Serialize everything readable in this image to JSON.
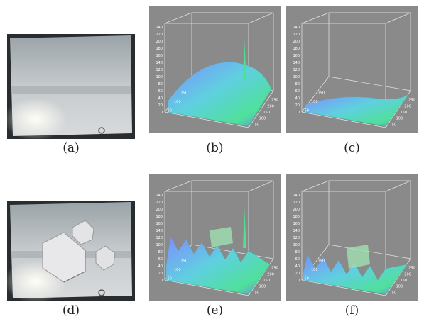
{
  "panels": [
    {
      "caption": "(a)",
      "kind": "photo",
      "cubes": false
    },
    {
      "caption": "(b)",
      "kind": "plot",
      "rugged": false,
      "z_ticks": [
        0,
        20,
        40,
        60,
        80,
        100,
        120,
        140,
        160,
        180,
        200,
        220,
        240
      ],
      "x_ticks": [
        50,
        100,
        150
      ],
      "y_ticks": [
        50,
        100,
        150,
        200,
        250
      ]
    },
    {
      "caption": "(c)",
      "kind": "plot",
      "rugged": false,
      "flat": true,
      "z_ticks": [
        0,
        20,
        40,
        60,
        80,
        100,
        120,
        140,
        160,
        180,
        200,
        220,
        240
      ],
      "x_ticks": [
        50,
        100,
        150
      ],
      "y_ticks": [
        50,
        100,
        150,
        200,
        250
      ]
    },
    {
      "caption": "(d)",
      "kind": "photo",
      "cubes": true
    },
    {
      "caption": "(e)",
      "kind": "plot",
      "rugged": true,
      "z_ticks": [
        0,
        20,
        40,
        60,
        80,
        100,
        120,
        140,
        160,
        180,
        200,
        220,
        240
      ],
      "x_ticks": [
        50,
        100,
        150
      ],
      "y_ticks": [
        50,
        100,
        150,
        200,
        250
      ]
    },
    {
      "caption": "(f)",
      "kind": "plot",
      "rugged": true,
      "flat": true,
      "z_ticks": [
        0,
        20,
        40,
        60,
        80,
        100,
        120,
        140,
        160,
        180,
        200,
        220,
        240
      ],
      "x_ticks": [
        50,
        100,
        150
      ],
      "y_ticks": [
        50,
        100,
        150,
        200,
        250
      ]
    }
  ]
}
